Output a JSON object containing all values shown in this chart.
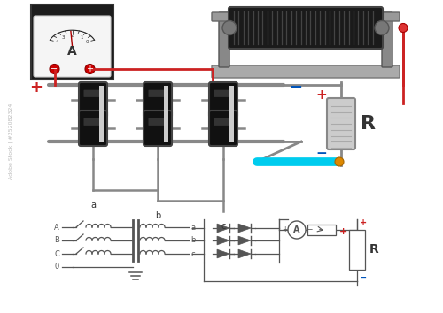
{
  "bg_color": "#ffffff",
  "gray": "#888888",
  "dark_gray": "#555555",
  "mid_gray": "#777777",
  "light_gray": "#bbbbbb",
  "red": "#cc2222",
  "blue": "#0055bb",
  "cyan": "#00ccee",
  "orange": "#dd8800",
  "black": "#111111",
  "wire_lw": 2.0,
  "thin_lw": 1.0,
  "figw": 5.0,
  "figh": 3.54,
  "dpi": 100,
  "xlim": [
    0,
    500
  ],
  "ylim": [
    0,
    354
  ]
}
